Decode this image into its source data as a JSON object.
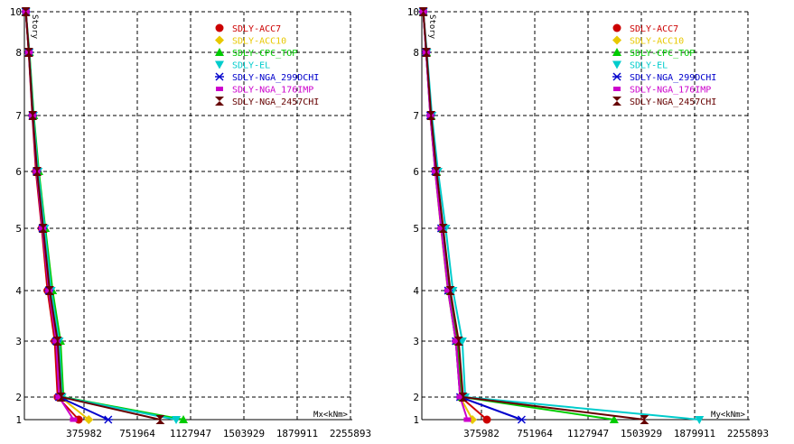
{
  "chart_data": [
    {
      "type": "line",
      "ylabel": "Story",
      "xlabel": "Mx<kNm>",
      "xlim": [
        0,
        2255893
      ],
      "ylim": [
        1,
        10
      ],
      "x_ticks": [
        "375982",
        "751964",
        "1127947",
        "1503929",
        "1879911",
        "2255893"
      ],
      "y_ticks": [
        "1",
        "2",
        "3",
        "4",
        "5",
        "6",
        "7",
        "8",
        "10"
      ],
      "y_values": [
        1,
        2,
        3,
        4,
        5,
        6,
        7,
        8,
        10
      ],
      "legend_position": "top-right",
      "grid": true,
      "series": [
        {
          "name": "SDLY-ACC7",
          "color": "#cc0000",
          "marker": "circle",
          "values": [
            375982,
            230000,
            210000,
            160000,
            120000,
            80000,
            55000,
            30000,
            10000
          ]
        },
        {
          "name": "SDLY-ACC10",
          "color": "#e8c800",
          "marker": "diamond",
          "values": [
            445000,
            250000,
            225000,
            175000,
            130000,
            90000,
            60000,
            32000,
            10000
          ]
        },
        {
          "name": "SDLY-CPC_TOP",
          "color": "#00cc00",
          "marker": "triangle-up",
          "values": [
            1100000,
            270000,
            250000,
            195000,
            145000,
            100000,
            65000,
            35000,
            10000
          ]
        },
        {
          "name": "SDLY-EL",
          "color": "#00cccc",
          "marker": "triangle-down",
          "values": [
            1050000,
            260000,
            240000,
            185000,
            140000,
            95000,
            62000,
            33000,
            10000
          ]
        },
        {
          "name": "SDLY-NGA_299DCHI",
          "color": "#0000cc",
          "marker": "star",
          "values": [
            580000,
            240000,
            220000,
            170000,
            125000,
            85000,
            57000,
            31000,
            10000
          ]
        },
        {
          "name": "SDLY-NGA_176IMP",
          "color": "#cc00cc",
          "marker": "square",
          "values": [
            340000,
            240000,
            220000,
            170000,
            125000,
            85000,
            57000,
            31000,
            10000
          ]
        },
        {
          "name": "SDLY-NGA_2457CHI",
          "color": "#660000",
          "marker": "hourglass",
          "values": [
            940000,
            255000,
            230000,
            175000,
            130000,
            88000,
            58000,
            31000,
            10000
          ]
        }
      ]
    },
    {
      "type": "line",
      "ylabel": "Story",
      "xlabel": "My<kNm>",
      "xlim": [
        0,
        2255893
      ],
      "ylim": [
        1,
        10
      ],
      "x_ticks": [
        "375982",
        "751964",
        "1127947",
        "1503929",
        "1879911",
        "2255893"
      ],
      "y_ticks": [
        "1",
        "2",
        "3",
        "4",
        "5",
        "6",
        "7",
        "8",
        "10"
      ],
      "y_values": [
        1,
        2,
        3,
        4,
        5,
        6,
        7,
        8,
        10
      ],
      "legend_position": "top-right",
      "grid": true,
      "series": [
        {
          "name": "SDLY-ACC7",
          "color": "#cc0000",
          "marker": "circle",
          "values": [
            450000,
            270000,
            240000,
            185000,
            135000,
            95000,
            60000,
            30000,
            10000
          ]
        },
        {
          "name": "SDLY-ACC10",
          "color": "#e8c800",
          "marker": "diamond",
          "values": [
            350000,
            265000,
            235000,
            180000,
            132000,
            92000,
            58000,
            30000,
            10000
          ]
        },
        {
          "name": "SDLY-CPC_TOP",
          "color": "#00cc00",
          "marker": "triangle-up",
          "values": [
            1330000,
            280000,
            250000,
            195000,
            145000,
            100000,
            63000,
            32000,
            10000
          ]
        },
        {
          "name": "SDLY-EL",
          "color": "#00cccc",
          "marker": "triangle-down",
          "values": [
            1920000,
            300000,
            280000,
            215000,
            165000,
            112000,
            70000,
            35000,
            10000
          ]
        },
        {
          "name": "SDLY-NGA_299DCHI",
          "color": "#0000cc",
          "marker": "star",
          "values": [
            690000,
            265000,
            235000,
            182000,
            134000,
            93000,
            59000,
            30000,
            10000
          ]
        },
        {
          "name": "SDLY-NGA_176IMP",
          "color": "#cc00cc",
          "marker": "square",
          "values": [
            315000,
            265000,
            235000,
            182000,
            134000,
            93000,
            59000,
            30000,
            10000
          ]
        },
        {
          "name": "SDLY-NGA_2457CHI",
          "color": "#660000",
          "marker": "hourglass",
          "values": [
            1540000,
            285000,
            255000,
            197000,
            148000,
            102000,
            64000,
            32000,
            10000
          ]
        }
      ]
    }
  ]
}
